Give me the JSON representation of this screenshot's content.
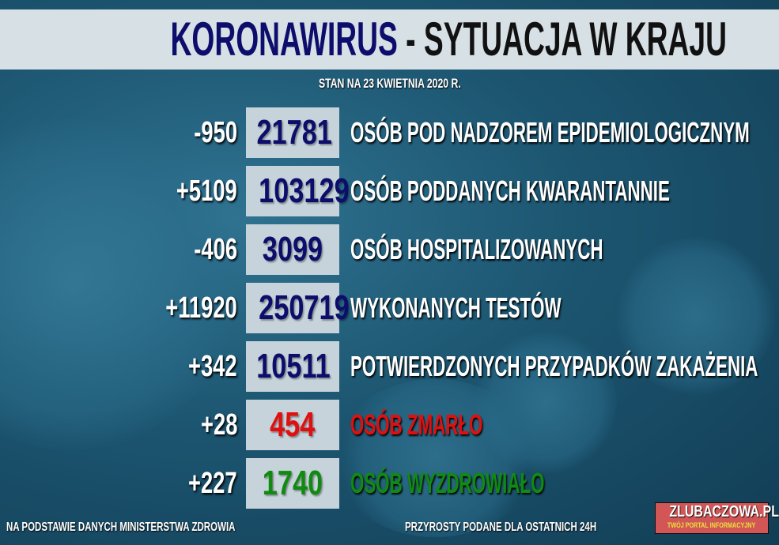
{
  "title": {
    "part1": "KORONAWIRUS",
    "part2": "- SYTUACJA W KRAJU"
  },
  "date": "STAN NA 23 KWIETNIA 2020 R.",
  "rows": [
    {
      "change": "-950",
      "value": "21781",
      "label": "OSÓB POD NADZOREM EPIDEMIOLOGICZNYM",
      "color": "#0d0d6b",
      "label_color": "#ffffff"
    },
    {
      "change": "+5109",
      "value": "103129",
      "label": "OSÓB PODDANYCH KWARANTANNIE",
      "color": "#0d0d6b",
      "label_color": "#ffffff"
    },
    {
      "change": "-406",
      "value": "3099",
      "label": "OSÓB HOSPITALIZOWANYCH",
      "color": "#0d0d6b",
      "label_color": "#ffffff"
    },
    {
      "change": "+11920",
      "value": "250719",
      "label": "WYKONANYCH TESTÓW",
      "color": "#0d0d6b",
      "label_color": "#ffffff"
    },
    {
      "change": "+342",
      "value": "10511",
      "label": "POTWIERDZONYCH PRZYPADKÓW ZAKAŻENIA",
      "color": "#0d0d6b",
      "label_color": "#ffffff"
    },
    {
      "change": "+28",
      "value": "454",
      "label": "OSÓB ZMARŁO",
      "color": "#e01010",
      "label_color": "#e01010"
    },
    {
      "change": "+227",
      "value": "1740",
      "label": "OSÓB WYZDROWIAŁO",
      "color": "#118a11",
      "label_color": "#118a11"
    }
  ],
  "footer": {
    "source": "NA PODSTAWIE DANYCH MINISTERSTWA ZDROWIA",
    "note": "PRZYROSTY PODANE DLA OSTATNICH 24H"
  },
  "logo": {
    "name": "ZLUBACZOWA.PL",
    "tagline": "TWÓJ PORTAL INFORMACYJNY"
  }
}
